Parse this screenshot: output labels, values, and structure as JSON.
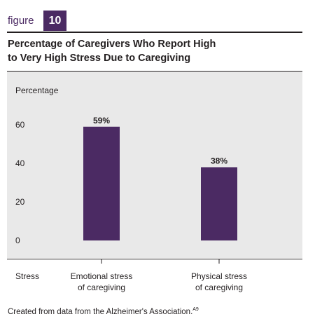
{
  "figure": {
    "label": "figure",
    "number": "10"
  },
  "chart_data": {
    "type": "bar",
    "title": "Percentage of Caregivers Who Report High to Very High Stress Due to Caregiving",
    "title_lines": [
      "Percentage of Caregivers Who Report High",
      "to Very High Stress Due to Caregiving"
    ],
    "ylabel": "Percentage",
    "xlabel": "Stress",
    "ylim": [
      0,
      60
    ],
    "yticks": [
      0,
      20,
      40,
      60
    ],
    "categories": [
      "Emotional stress of caregiving",
      "Physical stress of caregiving"
    ],
    "category_lines": [
      [
        "Emotional stress",
        "of caregiving"
      ],
      [
        "Physical stress",
        "of caregiving"
      ]
    ],
    "values": [
      59,
      38
    ],
    "data_labels": [
      "59%",
      "38%"
    ],
    "bar_color": "#4b2a63",
    "background_color": "#e9e9e9",
    "grid": false
  },
  "source": {
    "text": "Created from data from the Alzheimer's Association.",
    "ref": "A9"
  }
}
